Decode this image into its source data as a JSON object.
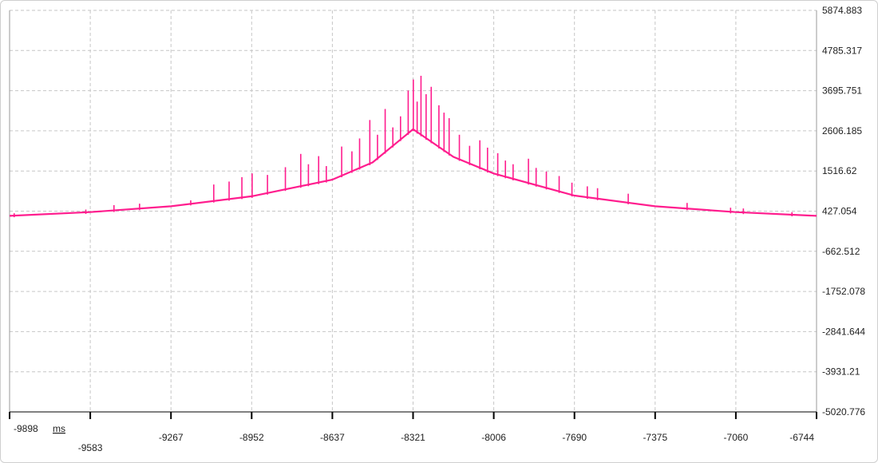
{
  "chart_data": {
    "type": "line",
    "title": "",
    "x_unit": "ms",
    "xlim": [
      -9898,
      -6744
    ],
    "ylim": [
      -5020.776,
      5874.883
    ],
    "x_ticks": [
      "-9898",
      "-9583",
      "-9267",
      "-8952",
      "-8637",
      "-8321",
      "-8006",
      "-7690",
      "-7375",
      "-7060",
      "-6744"
    ],
    "y_ticks": [
      "5874.883",
      "4785.317",
      "3695.751",
      "2606.185",
      "1516.62",
      "427.054",
      "-662.512",
      "-1752.078",
      "-2841.644",
      "-3931.21",
      "-5020.776"
    ],
    "grid": true,
    "series": [
      {
        "color": "#ff1d8e",
        "baseline": {
          "x": [
            -9898,
            -9583,
            -9267,
            -8952,
            -8637,
            -8479,
            -8321,
            -8163,
            -8006,
            -7690,
            -7375,
            -7060,
            -6744
          ],
          "y": [
            300,
            400,
            560,
            830,
            1280,
            1750,
            2650,
            1900,
            1450,
            850,
            560,
            400,
            300
          ]
        },
        "spikes": [
          {
            "x": -9880,
            "y": 370
          },
          {
            "x": -9600,
            "y": 470
          },
          {
            "x": -9490,
            "y": 590
          },
          {
            "x": -9390,
            "y": 630
          },
          {
            "x": -9190,
            "y": 720
          },
          {
            "x": -9100,
            "y": 1150
          },
          {
            "x": -9040,
            "y": 1230
          },
          {
            "x": -8990,
            "y": 1350
          },
          {
            "x": -8950,
            "y": 1450
          },
          {
            "x": -8890,
            "y": 1410
          },
          {
            "x": -8820,
            "y": 1620
          },
          {
            "x": -8760,
            "y": 1980
          },
          {
            "x": -8730,
            "y": 1700
          },
          {
            "x": -8690,
            "y": 1920
          },
          {
            "x": -8660,
            "y": 1650
          },
          {
            "x": -8600,
            "y": 2180
          },
          {
            "x": -8560,
            "y": 2050
          },
          {
            "x": -8530,
            "y": 2400
          },
          {
            "x": -8490,
            "y": 2900
          },
          {
            "x": -8460,
            "y": 2500
          },
          {
            "x": -8430,
            "y": 3200
          },
          {
            "x": -8400,
            "y": 2700
          },
          {
            "x": -8370,
            "y": 3000
          },
          {
            "x": -8340,
            "y": 3700
          },
          {
            "x": -8320,
            "y": 4000
          },
          {
            "x": -8305,
            "y": 3400
          },
          {
            "x": -8290,
            "y": 4100
          },
          {
            "x": -8270,
            "y": 3600
          },
          {
            "x": -8250,
            "y": 3800
          },
          {
            "x": -8220,
            "y": 3300
          },
          {
            "x": -8200,
            "y": 3100
          },
          {
            "x": -8180,
            "y": 2950
          },
          {
            "x": -8140,
            "y": 2500
          },
          {
            "x": -8100,
            "y": 2200
          },
          {
            "x": -8060,
            "y": 2350
          },
          {
            "x": -8030,
            "y": 2150
          },
          {
            "x": -7990,
            "y": 2000
          },
          {
            "x": -7960,
            "y": 1800
          },
          {
            "x": -7930,
            "y": 1700
          },
          {
            "x": -7870,
            "y": 1850
          },
          {
            "x": -7840,
            "y": 1600
          },
          {
            "x": -7800,
            "y": 1500
          },
          {
            "x": -7750,
            "y": 1380
          },
          {
            "x": -7700,
            "y": 1200
          },
          {
            "x": -7640,
            "y": 1100
          },
          {
            "x": -7600,
            "y": 1050
          },
          {
            "x": -7480,
            "y": 900
          },
          {
            "x": -7250,
            "y": 650
          },
          {
            "x": -7080,
            "y": 520
          },
          {
            "x": -7030,
            "y": 500
          },
          {
            "x": -6840,
            "y": 400
          }
        ]
      }
    ]
  }
}
